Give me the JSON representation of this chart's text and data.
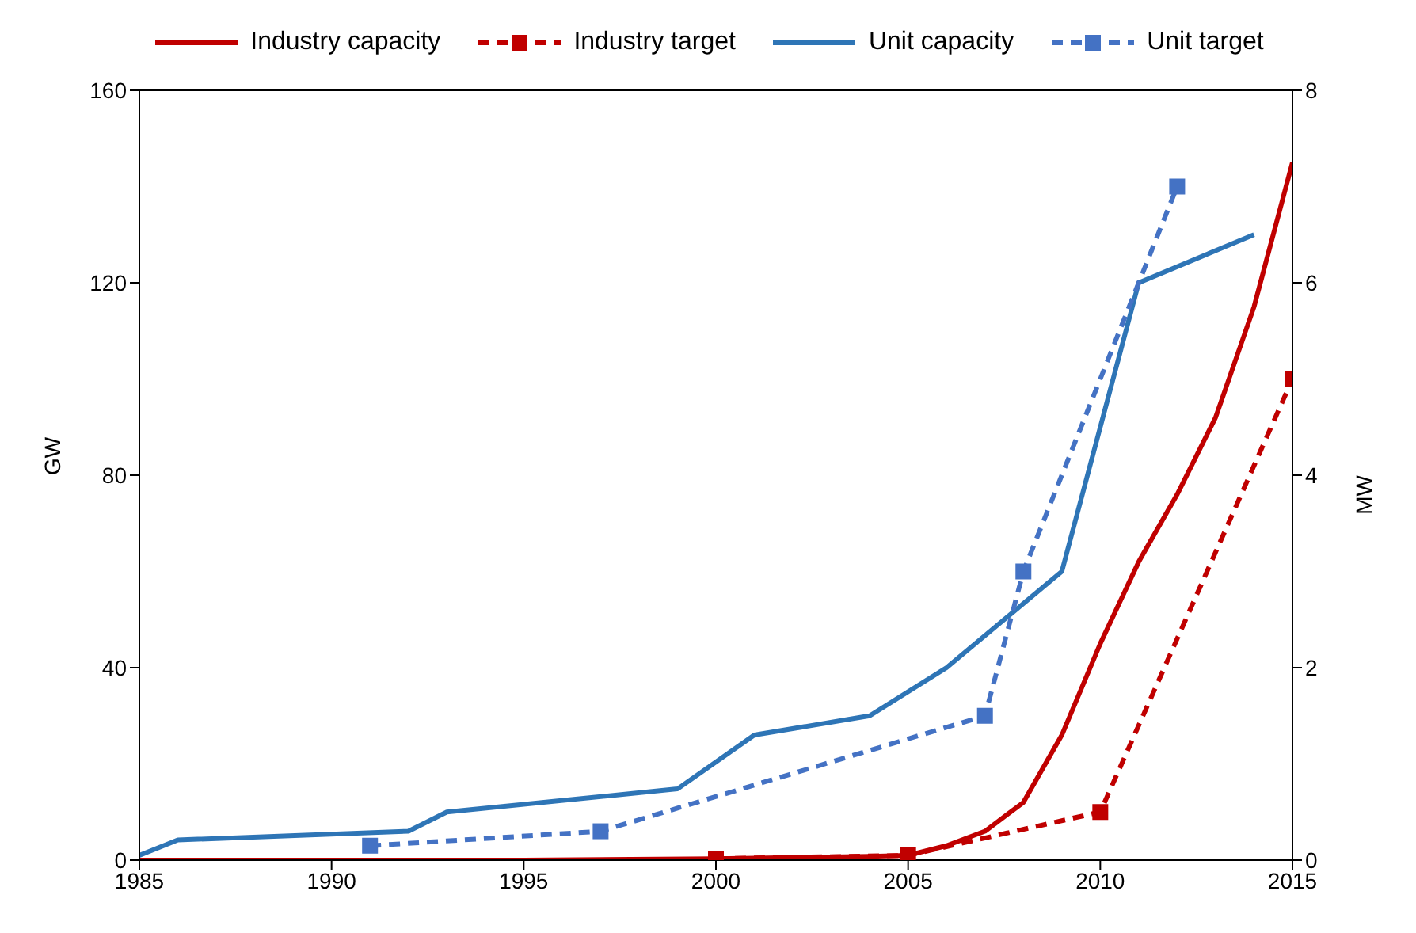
{
  "chart_data": {
    "type": "line",
    "ylabel": "GW",
    "y2label": "MW",
    "xlim": [
      1985,
      2015
    ],
    "xticks": [
      1985,
      1990,
      1995,
      2000,
      2005,
      2010,
      2015
    ],
    "ylim": [
      0,
      160
    ],
    "yticks": [
      0,
      40,
      80,
      120,
      160
    ],
    "y2lim": [
      0,
      8
    ],
    "y2ticks": [
      0,
      2,
      4,
      6,
      8
    ],
    "legend": "top",
    "series": [
      {
        "name": "Industry capacity",
        "color": "#c00000",
        "line_style": "solid",
        "marker": "none",
        "x": [
          1985,
          1995,
          2000,
          2004,
          2005,
          2006,
          2007,
          2008,
          2009,
          2010,
          2011,
          2012,
          2013,
          2014,
          2015
        ],
        "values": [
          0,
          0,
          0.3,
          0.8,
          1,
          3,
          6,
          12,
          26,
          45,
          62,
          76,
          92,
          115,
          145
        ]
      },
      {
        "name": "Industry target",
        "color": "#c00000",
        "line_style": "dashed",
        "marker": "square",
        "x": [
          2000,
          2005,
          2010,
          2015
        ],
        "values": [
          0.3,
          1,
          10,
          100
        ]
      },
      {
        "name": "Unit capacity",
        "color": "#2e75b6",
        "line_style": "solid",
        "marker": "none",
        "axis": "y2",
        "x": [
          1985,
          1986,
          1992,
          1993,
          1999,
          2001,
          2004,
          2006,
          2009,
          2011,
          2014
        ],
        "values": [
          0.05,
          0.21,
          0.3,
          0.5,
          0.74,
          1.3,
          1.5,
          2.0,
          3.0,
          6.0,
          6.5
        ]
      },
      {
        "name": "Unit target",
        "color": "#4472c4",
        "line_style": "dashed",
        "marker": "square",
        "axis": "y2",
        "x": [
          1991,
          1997,
          2007,
          2008,
          2012
        ],
        "values": [
          0.15,
          0.3,
          1.5,
          3.0,
          7.0
        ]
      }
    ]
  }
}
